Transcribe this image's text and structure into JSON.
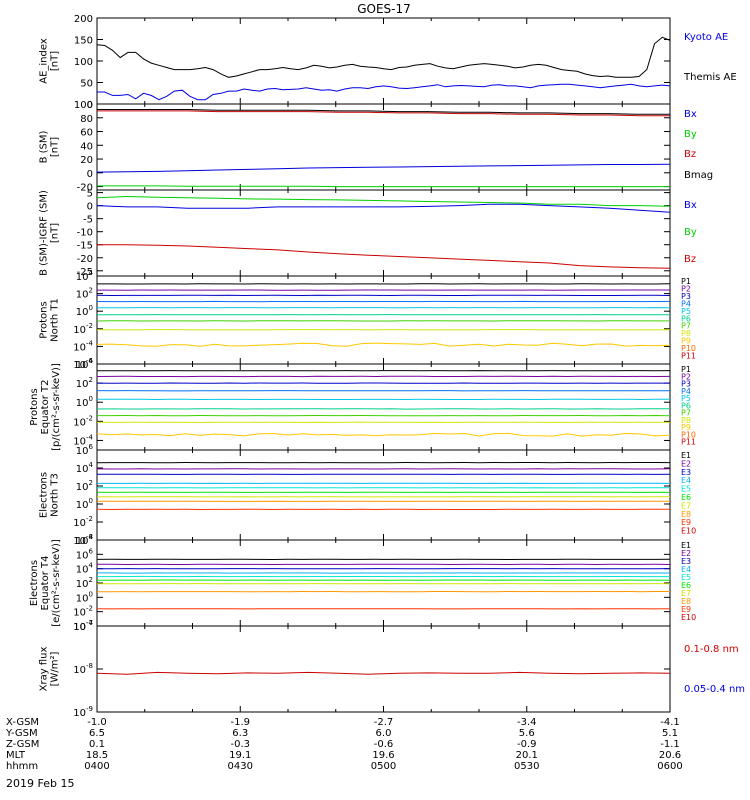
{
  "title": "GOES-17",
  "date_label": "2019 Feb 15",
  "colors": {
    "black": "#000000",
    "blue": "#0000e0",
    "green": "#00d000",
    "red": "#cc0000",
    "p_colors": [
      "#000000",
      "#7a00a0",
      "#0000c8",
      "#0070ff",
      "#00c8e6",
      "#00d28c",
      "#3cd200",
      "#d2e600",
      "#ffc800",
      "#ff6400",
      "#d20000"
    ],
    "e_colors": [
      "#000000",
      "#7a00a0",
      "#0000c8",
      "#00b4ff",
      "#00e6d2",
      "#00e600",
      "#d2e600",
      "#ff9600",
      "#ff3200",
      "#d20000"
    ]
  },
  "x_axis": {
    "tick_rows": [
      {
        "label": "X-GSM",
        "values": [
          "-1.0",
          "-1.9",
          "-2.7",
          "-3.4",
          "-4.1"
        ]
      },
      {
        "label": "Y-GSM",
        "values": [
          "6.5",
          "6.3",
          "6.0",
          "5.6",
          "5.1"
        ]
      },
      {
        "label": "Z-GSM",
        "values": [
          "0.1",
          "-0.3",
          "-0.6",
          "-0.9",
          "-1.1"
        ]
      },
      {
        "label": "MLT",
        "values": [
          "18.5",
          "19.1",
          "19.6",
          "20.1",
          "20.6"
        ]
      },
      {
        "label": "hhmm",
        "values": [
          "0400",
          "0430",
          "0500",
          "0530",
          "0600"
        ]
      }
    ]
  },
  "chart_data": [
    {
      "type": "line",
      "panel": "ae",
      "ylabel": [
        "AE_index",
        "[nT]"
      ],
      "ylim": [
        0,
        200
      ],
      "yticks": [
        "0",
        "50",
        "100",
        "150",
        "200"
      ],
      "x_range": [
        "0400",
        "0600"
      ],
      "series": [
        {
          "name": "Kyoto AE",
          "color": "blue",
          "values": [
            28,
            28,
            20,
            20,
            22,
            12,
            25,
            20,
            10,
            18,
            30,
            32,
            18,
            10,
            10,
            22,
            25,
            30,
            30,
            35,
            32,
            30,
            35,
            36,
            33,
            34,
            35,
            38,
            35,
            32,
            33,
            30,
            35,
            38,
            38,
            36,
            40,
            42,
            40,
            37,
            36,
            38,
            40,
            42,
            45,
            40,
            42,
            43,
            42,
            41,
            40,
            44,
            45,
            42,
            42,
            40,
            38,
            42,
            44,
            45,
            46,
            46,
            44,
            42,
            40,
            38,
            40,
            42,
            44,
            46,
            42,
            40,
            42,
            44,
            42
          ]
        },
        {
          "name": "Themis AE",
          "color": "black",
          "values": [
            138,
            136,
            125,
            108,
            120,
            120,
            105,
            95,
            90,
            85,
            80,
            80,
            80,
            82,
            85,
            80,
            70,
            62,
            65,
            70,
            75,
            80,
            80,
            82,
            85,
            82,
            80,
            84,
            90,
            88,
            84,
            86,
            90,
            92,
            88,
            86,
            85,
            82,
            80,
            85,
            86,
            90,
            92,
            94,
            88,
            84,
            82,
            86,
            90,
            92,
            94,
            92,
            90,
            88,
            84,
            86,
            90,
            92,
            90,
            85,
            80,
            78,
            76,
            70,
            66,
            64,
            65,
            62,
            62,
            62,
            64,
            80,
            140,
            155,
            148
          ]
        }
      ]
    },
    {
      "type": "line",
      "panel": "bsm",
      "ylabel": [
        "B (SM)",
        "[nT]"
      ],
      "ylim": [
        -25,
        100
      ],
      "yticks": [
        "-20",
        "0",
        "20",
        "40",
        "60",
        "80",
        "100"
      ],
      "series": [
        {
          "name": "Bx",
          "color": "blue",
          "values": [
            1,
            1.5,
            2,
            3,
            4,
            5,
            6,
            7,
            7.5,
            8,
            8.5,
            9,
            9.5,
            10,
            10.5,
            11,
            11.5,
            12,
            12,
            12.5
          ]
        },
        {
          "name": "By",
          "color": "green",
          "values": [
            -19,
            -19,
            -19,
            -19.5,
            -19.5,
            -19.5,
            -19.5,
            -19.5,
            -20,
            -20,
            -20,
            -20,
            -20,
            -20,
            -20,
            -20,
            -20,
            -20,
            -20,
            -20
          ]
        },
        {
          "name": "Bz",
          "color": "red",
          "values": [
            90,
            90,
            90,
            90,
            89,
            89,
            89,
            89,
            88,
            88,
            87,
            87,
            86,
            86,
            85,
            85,
            84,
            84,
            83,
            83
          ]
        },
        {
          "name": "Bmag",
          "color": "black",
          "values": [
            92,
            92,
            92,
            92,
            91,
            91,
            91,
            91,
            90,
            90,
            89,
            89,
            88,
            88,
            87,
            87,
            86,
            86,
            85,
            85
          ]
        }
      ]
    },
    {
      "type": "line",
      "panel": "dbsm",
      "ylabel": [
        "B (SM)-IGRF (SM)",
        "[nT]"
      ],
      "ylim": [
        -27,
        6
      ],
      "yticks": [
        "-25",
        "-20",
        "-15",
        "-10",
        "-5",
        "0",
        "5"
      ],
      "series": [
        {
          "name": "Bx",
          "color": "blue",
          "values": [
            0,
            -0.5,
            -0.5,
            -1,
            -1,
            -1,
            -0.5,
            -0.5,
            -0.5,
            -0.5,
            -0.5,
            -0.3,
            0,
            0.5,
            0.5,
            0,
            -0.5,
            -1,
            -1.8,
            -2.5
          ]
        },
        {
          "name": "By",
          "color": "green",
          "values": [
            3,
            3.5,
            3.2,
            3,
            2.8,
            2.6,
            2.5,
            2.3,
            2.2,
            2,
            1.8,
            1.6,
            1.4,
            1.2,
            1,
            0.5,
            0.5,
            0,
            0,
            -0.2
          ]
        },
        {
          "name": "Bz",
          "color": "red",
          "values": [
            -15,
            -15,
            -15.2,
            -15.5,
            -16,
            -16.5,
            -17,
            -17.8,
            -18.5,
            -19,
            -19.5,
            -20,
            -20.5,
            -21,
            -21.5,
            -22,
            -23,
            -23.5,
            -23.8,
            -24
          ]
        }
      ]
    },
    {
      "type": "line",
      "panel": "p_north",
      "ylabel": [
        "Protons",
        "North T1"
      ],
      "log": true,
      "ylim": [
        -6,
        4
      ],
      "yticks": [
        "-6",
        "-4",
        "-2",
        "0",
        "2",
        "4"
      ],
      "legend": [
        "P1",
        "P2",
        "P3",
        "P4",
        "P5",
        "P6",
        "P7",
        "P8",
        "P9",
        "P10",
        "P11"
      ],
      "levels": [
        3.1,
        2.4,
        1.8,
        1.1,
        0.4,
        -0.4,
        -1.1,
        -2.1,
        -3.8,
        -6.2,
        -6.8
      ],
      "noise": [
        0,
        0,
        0,
        0,
        0,
        0,
        0,
        0,
        0.35,
        0,
        0
      ]
    },
    {
      "type": "line",
      "panel": "p_equator",
      "ylabel": [
        "Protons",
        "Equator T2",
        "[p/(cm²-s-sr-keV)]"
      ],
      "log": true,
      "ylim": [
        -5,
        4
      ],
      "yticks": [
        "-4",
        "-2",
        "0",
        "2",
        "4"
      ],
      "legend": [
        "P1",
        "P2",
        "P3",
        "P4",
        "P5",
        "P6",
        "P7",
        "P8",
        "P9",
        "P10",
        "P11"
      ],
      "levels": [
        3.3,
        2.7,
        2,
        1.2,
        0.3,
        -0.7,
        -1.4,
        -2.1,
        -3.4,
        -5.5,
        -6
      ],
      "noise": [
        0,
        0,
        0,
        0,
        0,
        0,
        0,
        0,
        0.3,
        0,
        0
      ]
    },
    {
      "type": "line",
      "panel": "e_north",
      "ylabel": [
        "Electrons",
        "North T3"
      ],
      "log": true,
      "ylim": [
        -4,
        6
      ],
      "yticks": [
        "-4",
        "-2",
        "0",
        "2",
        "4",
        "6"
      ],
      "legend": [
        "E1",
        "E2",
        "E3",
        "E4",
        "E5",
        "E6",
        "E7",
        "E8",
        "E9",
        "E10"
      ],
      "levels": [
        4.6,
        3.9,
        3.3,
        2.3,
        1.8,
        1.3,
        0.8,
        0.3,
        -0.6,
        -7
      ],
      "noise": [
        0,
        0,
        0,
        0,
        0,
        0,
        0,
        0,
        0,
        0
      ]
    },
    {
      "type": "line",
      "panel": "e_equator",
      "ylabel": [
        "Electrons",
        "Equator T4",
        "[e/(cm²-s-sr-keV)]"
      ],
      "log": true,
      "ylim": [
        -4,
        8
      ],
      "yticks": [
        "-4",
        "-2",
        "0",
        "2",
        "4",
        "6",
        "8"
      ],
      "legend": [
        "E1",
        "E2",
        "E3",
        "E4",
        "E5",
        "E6",
        "E7",
        "E8",
        "E9",
        "E10"
      ],
      "levels": [
        5.3,
        4.6,
        4,
        3.4,
        2.9,
        2.4,
        1.9,
        0.8,
        -1.6,
        -7
      ],
      "noise": [
        0,
        0,
        0,
        0,
        0,
        0,
        0,
        0,
        0,
        0
      ]
    },
    {
      "type": "line",
      "panel": "xray",
      "ylabel": [
        "Xray flux",
        "[W/m²]"
      ],
      "log": true,
      "ylim": [
        -9,
        -7
      ],
      "yticks": [
        "-9",
        "-8",
        "-7"
      ],
      "series": [
        {
          "name": "0.1-0.8 nm",
          "color": "red",
          "values": [
            -8.1,
            -8.12,
            -8.08,
            -8.1,
            -8.11,
            -8.09,
            -8.1,
            -8.08,
            -8.1,
            -8.12,
            -8.1,
            -8.09,
            -8.1,
            -8.1,
            -8.08,
            -8.1,
            -8.11,
            -8.1,
            -8.09,
            -8.1
          ]
        },
        {
          "name": "0.05-0.4 nm",
          "color": "blue",
          "values": []
        }
      ]
    }
  ],
  "ae_legend": [
    "Kyoto AE",
    "Themis AE"
  ],
  "bsm_legend": [
    "Bx",
    "By",
    "Bz",
    "Bmag"
  ],
  "dbsm_legend": [
    "Bx",
    "By",
    "Bz"
  ],
  "xray_legend": [
    "0.1-0.8 nm",
    "0.05-0.4 nm"
  ]
}
